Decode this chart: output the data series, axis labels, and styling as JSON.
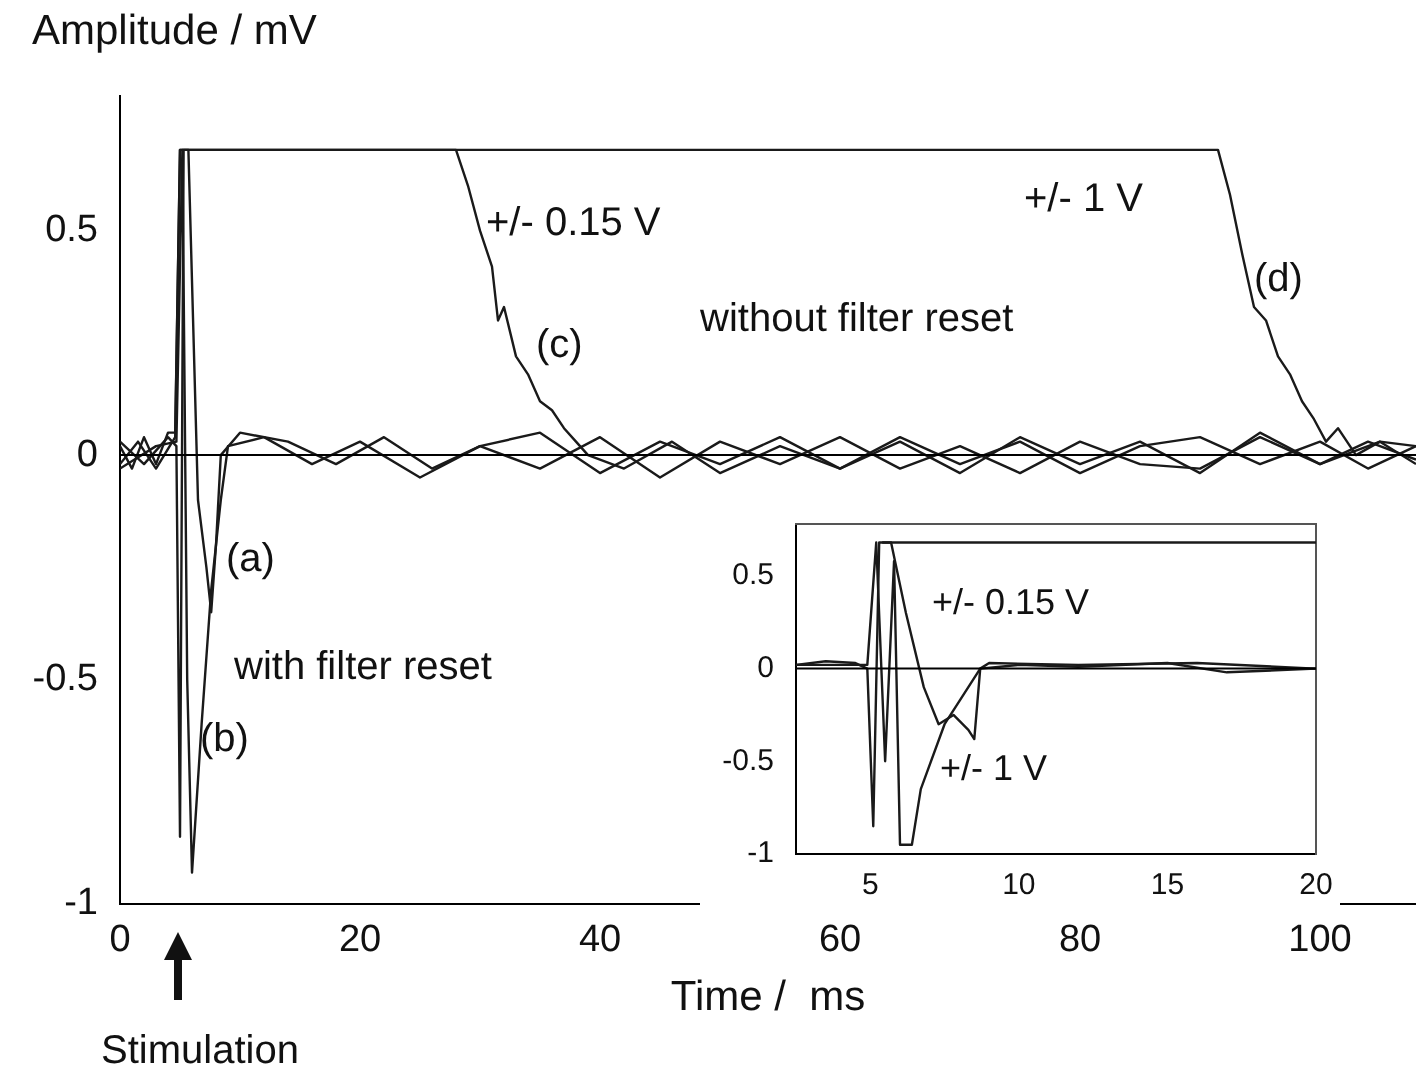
{
  "chart_data": [
    {
      "type": "line",
      "xlabel": "Time /  ms",
      "ylabel": "Amplitude / mV",
      "xlim": [
        0,
        108
      ],
      "ylim": [
        -1,
        0.8
      ],
      "xticks": [
        0,
        20,
        40,
        60,
        80,
        100
      ],
      "yticks": [
        -1,
        -0.5,
        0,
        0.5
      ],
      "marker": "none",
      "line_style": "solid",
      "ref_lines": [
        {
          "axis": "y",
          "value": 0,
          "color": "#000000"
        }
      ],
      "series": [
        {
          "color": "#1a1a1a",
          "x": [
            0,
            1,
            2,
            3,
            4,
            4.6,
            5,
            28,
            29,
            30,
            31,
            31.5,
            32,
            33,
            34,
            35,
            36,
            37,
            38,
            39,
            42,
            46,
            50,
            55,
            60,
            65,
            70,
            75,
            80,
            85,
            90,
            95,
            100,
            104,
            108
          ],
          "values": [
            0.02,
            -0.03,
            0.04,
            -0.02,
            0.05,
            0.05,
            0.68,
            0.68,
            0.6,
            0.5,
            0.42,
            0.3,
            0.33,
            0.22,
            0.18,
            0.12,
            0.1,
            0.06,
            0.03,
            0,
            -0.03,
            0.03,
            -0.04,
            0.02,
            -0.03,
            0.04,
            -0.02,
            0.03,
            -0.04,
            0.02,
            0.04,
            -0.02,
            0.03,
            -0.03,
            0.02
          ]
        },
        {
          "color": "#1a1a1a",
          "x": [
            0,
            1.5,
            3,
            4.6,
            5,
            91.5,
            92.5,
            93.5,
            94.5,
            95.5,
            96.5,
            97.5,
            98.5,
            99.5,
            100.5,
            101.5,
            103,
            105,
            108
          ],
          "values": [
            -0.02,
            0.03,
            -0.03,
            0.04,
            0.68,
            0.68,
            0.58,
            0.45,
            0.33,
            0.3,
            0.22,
            0.18,
            0.12,
            0.08,
            0.03,
            0.06,
            0,
            0.03,
            -0.02
          ]
        },
        {
          "color": "#1a1a1a",
          "x": [
            0,
            2,
            4,
            4.7,
            5,
            5.3,
            5.7,
            6.5,
            7.2,
            7.6,
            8,
            8.4,
            10,
            14,
            18,
            22,
            26,
            30,
            35,
            40,
            45,
            50,
            55,
            60,
            65,
            70,
            75,
            80,
            85,
            90,
            95,
            100,
            104,
            108
          ],
          "values": [
            0.03,
            -0.02,
            0.04,
            0.02,
            -0.85,
            0.68,
            0.68,
            -0.1,
            -0.25,
            -0.35,
            -0.2,
            0,
            0.05,
            0.03,
            -0.02,
            0.04,
            -0.03,
            0.02,
            0.05,
            -0.04,
            0.03,
            -0.02,
            0.04,
            -0.03,
            0.03,
            -0.04,
            0.04,
            -0.02,
            0.03,
            -0.04,
            0.05,
            -0.02,
            0.03,
            -0.01
          ]
        },
        {
          "color": "#1a1a1a",
          "x": [
            0,
            3,
            4.7,
            5.2,
            5.6,
            6,
            6.8,
            7.6,
            8.4,
            9,
            12,
            16,
            20,
            25,
            30,
            35,
            40,
            45,
            50,
            55,
            60,
            65,
            70,
            75,
            80,
            85,
            90,
            95,
            100,
            105,
            108
          ],
          "values": [
            -0.03,
            0.02,
            0.03,
            0.68,
            -0.5,
            -0.93,
            -0.6,
            -0.3,
            -0.1,
            0.02,
            0.04,
            -0.02,
            0.03,
            -0.05,
            0.02,
            -0.03,
            0.04,
            -0.05,
            0.03,
            -0.02,
            0.04,
            -0.03,
            0.02,
            -0.04,
            0.03,
            -0.02,
            -0.03,
            0.04,
            -0.02,
            0.03,
            0.02
          ]
        }
      ],
      "annotations": [
        "+/- 0.15 V",
        "(c)",
        "without filter reset",
        "+/- 1 V",
        "(d)",
        "(a)",
        "with filter reset",
        "(b)",
        "Stimulation"
      ]
    },
    {
      "type": "line",
      "xlim": [
        2.5,
        20
      ],
      "ylim": [
        -1,
        0.78
      ],
      "xticks": [
        5,
        10,
        15,
        20
      ],
      "yticks": [
        -1,
        -0.5,
        0,
        0.5
      ],
      "marker": "none",
      "line_style": "solid",
      "ref_lines": [
        {
          "axis": "y",
          "value": 0,
          "color": "#000000"
        }
      ],
      "series": [
        {
          "color": "#1a1a1a",
          "x": [
            2.5,
            3.5,
            4.5,
            4.9,
            5.1,
            5.3,
            5.7,
            6.2,
            6.8,
            7.3,
            7.8,
            8.3,
            8.5,
            8.7,
            10,
            12,
            15,
            17,
            20
          ],
          "values": [
            0.02,
            0.04,
            0.03,
            0,
            -0.85,
            0.68,
            0.68,
            0.3,
            -0.1,
            -0.3,
            -0.25,
            -0.33,
            -0.38,
            0,
            0.02,
            0.01,
            0.03,
            -0.02,
            0
          ]
        },
        {
          "color": "#1a1a1a",
          "x": [
            2.5,
            4.9,
            5.2,
            5.5,
            5.8,
            6,
            6.4,
            6.7,
            7.5,
            8.7,
            9,
            12,
            16,
            20
          ],
          "values": [
            0.02,
            0.02,
            0.68,
            -0.5,
            0.58,
            -0.95,
            -0.95,
            -0.65,
            -0.3,
            0,
            0.03,
            0.02,
            0.03,
            0
          ]
        },
        {
          "color": "#1a1a1a",
          "x": [
            5.4,
            20
          ],
          "values": [
            0.68,
            0.68
          ]
        }
      ],
      "annotations": [
        "+/- 0.15 V",
        "+/- 1 V"
      ]
    }
  ]
}
